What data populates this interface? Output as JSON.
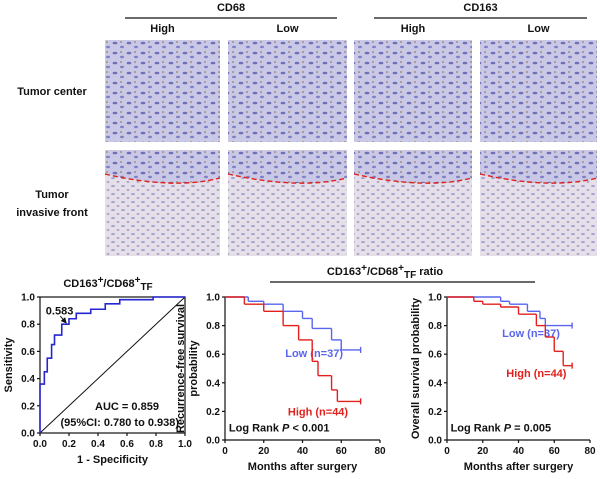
{
  "figure": {
    "groups": [
      {
        "label": "CD68",
        "levels": [
          "High",
          "Low"
        ]
      },
      {
        "label": "CD163",
        "levels": [
          "High",
          "Low"
        ]
      }
    ],
    "rows": [
      [
        "Tumor center"
      ],
      [
        "Tumor",
        "invasive front"
      ]
    ],
    "ratio_title": [
      "CD163",
      "+",
      "/CD68",
      "+",
      "TF",
      " ratio"
    ]
  },
  "chart_data": [
    {
      "type": "line",
      "title": [
        "CD163",
        "+",
        "/CD68",
        "+",
        "TF"
      ],
      "x_label": "1 - Specificity",
      "y_label": "Sensitivity",
      "xlim": [
        0,
        1
      ],
      "ylim": [
        0,
        1
      ],
      "xticks": [
        {
          "value": 0,
          "label": "0.0"
        },
        {
          "value": 0.2,
          "label": "0.2"
        },
        {
          "value": 0.4,
          "label": "0.4"
        },
        {
          "value": 0.6,
          "label": "0.6"
        },
        {
          "value": 0.8,
          "label": "0.8"
        },
        {
          "value": 1,
          "label": "1.0"
        }
      ],
      "yticks": [
        {
          "value": 0,
          "label": "0.0"
        },
        {
          "value": 0.2,
          "label": "0.2"
        },
        {
          "value": 0.4,
          "label": "0.4"
        },
        {
          "value": 0.6,
          "label": "0.6"
        },
        {
          "value": 0.8,
          "label": "0.8"
        },
        {
          "value": 1,
          "label": "1.0"
        }
      ],
      "reference_line": true,
      "series": [
        {
          "color": "#2626d0",
          "x": [
            0,
            0,
            0.03,
            0.03,
            0.05,
            0.05,
            0.08,
            0.08,
            0.1,
            0.1,
            0.15,
            0.15,
            0.2,
            0.2,
            0.25,
            0.25,
            0.35,
            0.35,
            0.45,
            0.45,
            0.55,
            0.55,
            0.78,
            0.78,
            1
          ],
          "values": [
            0,
            0.36,
            0.36,
            0.45,
            0.45,
            0.55,
            0.55,
            0.65,
            0.65,
            0.72,
            0.72,
            0.8,
            0.8,
            0.84,
            0.84,
            0.88,
            0.88,
            0.91,
            0.91,
            0.95,
            0.95,
            0.98,
            0.98,
            1,
            1
          ]
        }
      ],
      "annotations": [
        "0.583",
        "AUC = 0.859",
        "(95%CI: 0.780 to 0.938)"
      ]
    },
    {
      "type": "step",
      "y_label": [
        "Recurrence-free survival",
        "probability"
      ],
      "x_label": "Months after surgery",
      "xlim": [
        0,
        80
      ],
      "ylim": [
        0,
        1
      ],
      "xticks": [
        0,
        20,
        40,
        60,
        80
      ],
      "yticks": [
        {
          "value": 0,
          "label": "0.0"
        },
        {
          "value": 0.2,
          "label": "0.2"
        },
        {
          "value": 0.4,
          "label": "0.4"
        },
        {
          "value": 0.6,
          "label": "0.6"
        },
        {
          "value": 0.8,
          "label": "0.8"
        },
        {
          "value": 1,
          "label": "1.0"
        }
      ],
      "series": [
        {
          "name": "Low (n=37)",
          "color": "#5865ee",
          "x": [
            0,
            12,
            20,
            30,
            40,
            45,
            55,
            60,
            70
          ],
          "values": [
            1,
            0.97,
            0.95,
            0.9,
            0.85,
            0.78,
            0.7,
            0.63,
            0.63
          ]
        },
        {
          "name": "High (n=44)",
          "color": "#e2201c",
          "x": [
            0,
            10,
            20,
            30,
            38,
            45,
            48,
            55,
            58,
            70
          ],
          "values": [
            1,
            0.95,
            0.9,
            0.8,
            0.7,
            0.55,
            0.45,
            0.35,
            0.27,
            0.27
          ]
        }
      ],
      "annotation": [
        "Log Rank ",
        "P",
        " < 0.001"
      ]
    },
    {
      "type": "step",
      "y_label": [
        "Overall survival probability"
      ],
      "x_label": "Months after surgery",
      "xlim": [
        0,
        80
      ],
      "ylim": [
        0,
        1
      ],
      "xticks": [
        0,
        20,
        40,
        60,
        80
      ],
      "yticks": [
        {
          "value": 0,
          "label": "0.0"
        },
        {
          "value": 0.2,
          "label": "0.2"
        },
        {
          "value": 0.4,
          "label": "0.4"
        },
        {
          "value": 0.6,
          "label": "0.6"
        },
        {
          "value": 0.8,
          "label": "0.8"
        },
        {
          "value": 1,
          "label": "1.0"
        }
      ],
      "series": [
        {
          "name": "Low (n=37)",
          "color": "#5865ee",
          "x": [
            0,
            30,
            35,
            45,
            52,
            55,
            70
          ],
          "values": [
            1,
            0.97,
            0.95,
            0.9,
            0.85,
            0.8,
            0.8
          ]
        },
        {
          "name": "High (n=44)",
          "color": "#e2201c",
          "x": [
            0,
            15,
            20,
            30,
            40,
            50,
            55,
            60,
            65,
            70
          ],
          "values": [
            1,
            0.97,
            0.95,
            0.93,
            0.88,
            0.8,
            0.72,
            0.62,
            0.52,
            0.52
          ]
        }
      ],
      "annotation": [
        "Log Rank ",
        "P",
        " = 0.005"
      ]
    }
  ]
}
